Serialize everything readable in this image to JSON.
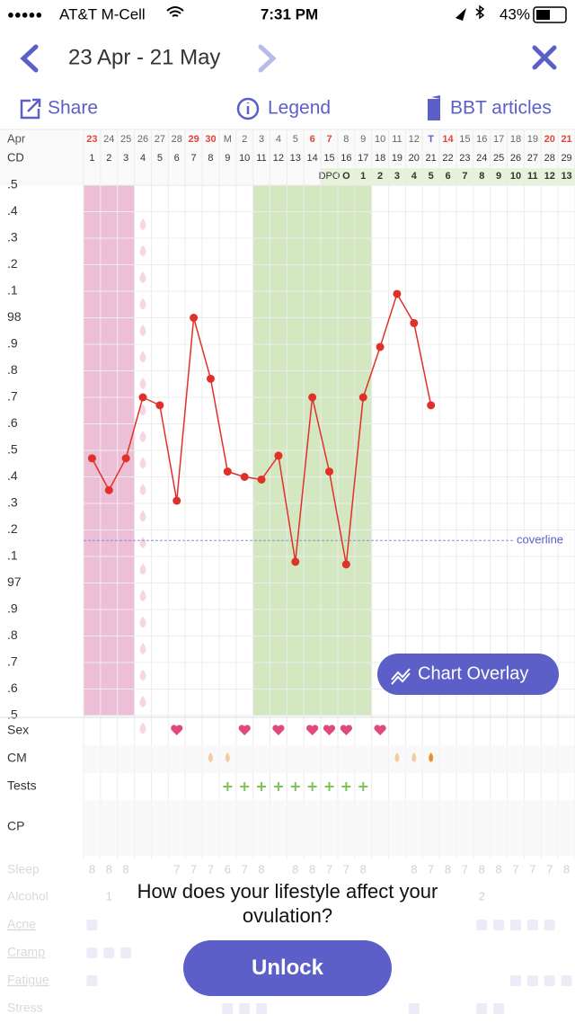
{
  "status_bar": {
    "signal": "●●●●●",
    "carrier": "AT&T M-Cell",
    "time": "7:31 PM",
    "battery": "43%"
  },
  "header": {
    "title": "23 Apr - 21 May"
  },
  "toolbar": {
    "share": "Share",
    "legend": "Legend",
    "articles": "BBT articles"
  },
  "chart_data": {
    "type": "line",
    "month_label": "Apr",
    "categories": [
      "23",
      "24",
      "25",
      "26",
      "27",
      "28",
      "29",
      "30",
      "M",
      "2",
      "3",
      "4",
      "5",
      "6",
      "7",
      "8",
      "9",
      "10",
      "11",
      "12",
      "T",
      "14",
      "15",
      "16",
      "17",
      "18",
      "19",
      "20",
      "21"
    ],
    "red_dates": [
      0,
      6,
      7,
      13,
      14,
      21,
      27,
      28
    ],
    "today_index": 20,
    "cd_label": "CD",
    "cycle_days": [
      1,
      2,
      3,
      4,
      5,
      6,
      7,
      8,
      9,
      10,
      11,
      12,
      13,
      14,
      15,
      16,
      17,
      18,
      19,
      20,
      21,
      22,
      23,
      24,
      25,
      26,
      27,
      28,
      29
    ],
    "dpo_label": "DPO",
    "dpo": [
      null,
      null,
      null,
      null,
      null,
      null,
      null,
      null,
      null,
      null,
      null,
      null,
      null,
      null,
      null,
      "O",
      1,
      2,
      3,
      4,
      5,
      6,
      7,
      8,
      9,
      10,
      11,
      12,
      13
    ],
    "values": [
      97.47,
      97.35,
      97.47,
      97.7,
      97.67,
      97.31,
      98.0,
      97.77,
      97.42,
      97.4,
      97.39,
      97.48,
      97.08,
      97.7,
      97.42,
      97.07,
      97.7,
      97.89,
      98.09,
      97.98,
      97.67,
      null,
      null,
      null,
      null,
      null,
      null,
      null,
      null
    ],
    "color": "#e0302a",
    "ylim": [
      96.5,
      98.5
    ],
    "yticks": [
      {
        "value": 96.5,
        "label": ".5"
      },
      {
        "value": 96.6,
        "label": ".6"
      },
      {
        "value": 96.7,
        "label": ".7"
      },
      {
        "value": 96.8,
        "label": ".8"
      },
      {
        "value": 96.9,
        "label": ".9"
      },
      97,
      {
        "value": 97.1,
        "label": ".1"
      },
      {
        "value": 97.2,
        "label": ".2"
      },
      {
        "value": 97.3,
        "label": ".3"
      },
      {
        "value": 97.4,
        "label": ".4"
      },
      {
        "value": 97.5,
        "label": ".5"
      },
      {
        "value": 97.6,
        "label": ".6"
      },
      {
        "value": 97.7,
        "label": ".7"
      },
      {
        "value": 97.8,
        "label": ".8"
      },
      {
        "value": 97.9,
        "label": ".9"
      },
      98,
      {
        "value": 98.1,
        "label": ".1"
      },
      {
        "value": 98.2,
        "label": ".2"
      },
      {
        "value": 98.3,
        "label": ".3"
      },
      {
        "value": 98.4,
        "label": ".4"
      },
      {
        "value": 98.5,
        "label": ".5"
      }
    ],
    "grid": true,
    "coverline": {
      "value": 97.16,
      "label": "coverline"
    },
    "overlay_button": "Chart Overlay"
  },
  "rows": {
    "sex": {
      "label": "Sex",
      "days": [
        6,
        10,
        12,
        14,
        15,
        16,
        18
      ]
    },
    "cm": {
      "label": "CM",
      "days": [
        8,
        9,
        19,
        20,
        21
      ]
    },
    "tests": {
      "label": "Tests",
      "days": [
        9,
        10,
        11,
        12,
        13,
        14,
        15,
        16,
        17
      ]
    },
    "cp": {
      "label": "CP"
    },
    "sleep": {
      "label": "Sleep",
      "values": [
        8,
        8,
        8,
        null,
        null,
        7,
        7,
        7,
        6,
        7,
        8,
        null,
        8,
        8,
        7,
        7,
        8,
        null,
        null,
        8,
        7,
        8,
        7,
        8,
        8,
        7,
        7,
        7,
        8
      ]
    },
    "alcohol": {
      "label": "Alcohol",
      "values": [
        null,
        1,
        null,
        null,
        null,
        null,
        null,
        null,
        null,
        null,
        null,
        null,
        null,
        null,
        null,
        null,
        null,
        null,
        null,
        null,
        null,
        null,
        null,
        2,
        null,
        null,
        null,
        null,
        null
      ]
    },
    "acne": {
      "label": "Acne"
    },
    "cramp": {
      "label": "Cramp"
    },
    "fatigue": {
      "label": "Fatigue"
    },
    "stress": {
      "label": "Stress"
    }
  },
  "overlay": {
    "question": "How does your lifestyle affect your ovulation?",
    "button": "Unlock"
  }
}
